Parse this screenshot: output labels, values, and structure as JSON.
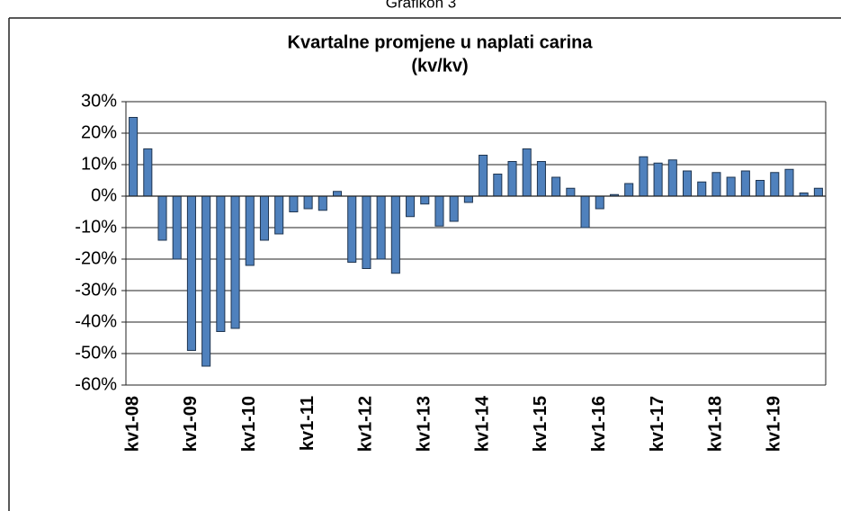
{
  "header": "Grafikon 3",
  "chart_data": {
    "type": "bar",
    "title": "Kvartalne promjene u naplati carina",
    "subtitle": "(kv/kv)",
    "categories": [
      "kv1-08",
      null,
      null,
      null,
      "kv1-09",
      null,
      null,
      null,
      "kv1-10",
      null,
      null,
      null,
      "kv1-11",
      null,
      null,
      null,
      "kv1-12",
      null,
      null,
      null,
      "kv1-13",
      null,
      null,
      null,
      "kv1-14",
      null,
      null,
      null,
      "kv1-15",
      null,
      null,
      null,
      "kv1-16",
      null,
      null,
      null,
      "kv1-17",
      null,
      null,
      null,
      "kv1-18",
      null,
      null,
      null,
      "kv1-19",
      null,
      null,
      null
    ],
    "values": [
      25,
      15,
      -14,
      -20,
      -49,
      -54,
      -43,
      -42,
      -22,
      -14,
      -12,
      -5,
      -4,
      -4.5,
      1.5,
      -21,
      -23,
      -20,
      -24.5,
      -6.5,
      -2.5,
      -9.5,
      -8,
      -2,
      13,
      7,
      11,
      15,
      11,
      6,
      2.5,
      -10,
      -4,
      0.5,
      4,
      12.5,
      10.5,
      11.5,
      8,
      4.5,
      7.5,
      6,
      8,
      5,
      7.5,
      8.5,
      1,
      2.5
    ],
    "color": "#4f81bd",
    "ylim": [
      -60,
      30
    ],
    "yticks": [
      {
        "value": -60,
        "label": "-60%"
      },
      {
        "value": -50,
        "label": "-50%"
      },
      {
        "value": -40,
        "label": "-40%"
      },
      {
        "value": -30,
        "label": "-30%"
      },
      {
        "value": -20,
        "label": "-20%"
      },
      {
        "value": -10,
        "label": "-10%"
      },
      {
        "value": 0,
        "label": "0%"
      },
      {
        "value": 10,
        "label": "10%"
      },
      {
        "value": 20,
        "label": "20%"
      },
      {
        "value": 30,
        "label": "30%"
      }
    ],
    "grid": true
  }
}
